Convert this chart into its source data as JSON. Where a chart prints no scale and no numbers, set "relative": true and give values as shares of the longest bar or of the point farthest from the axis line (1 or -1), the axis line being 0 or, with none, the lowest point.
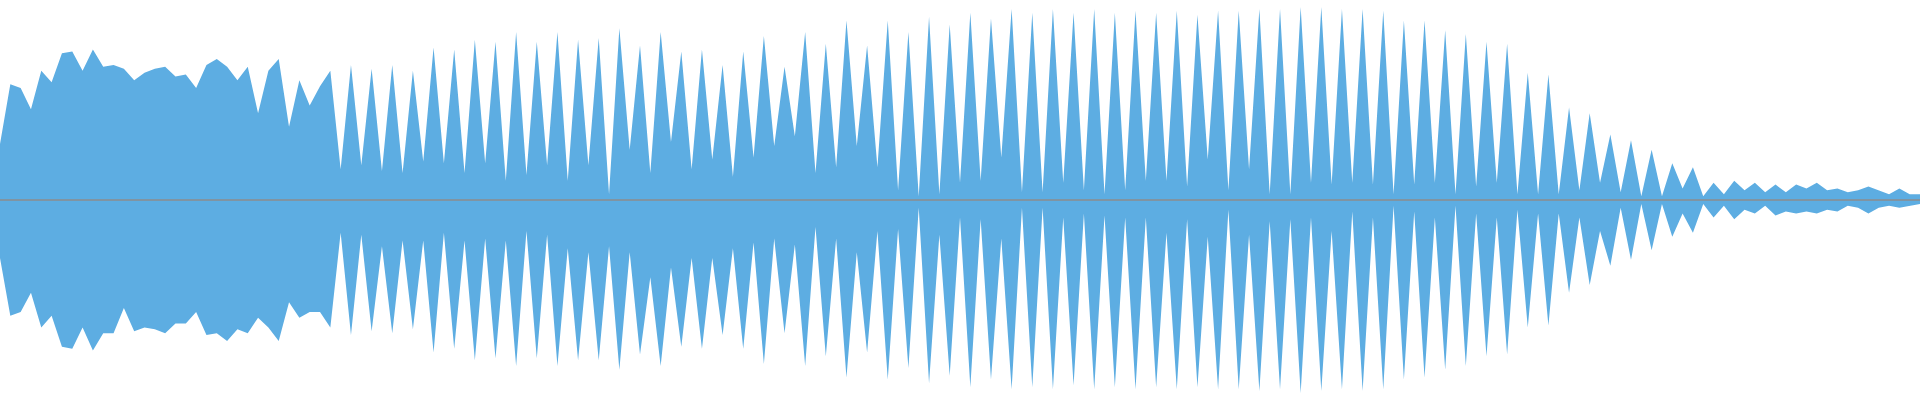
{
  "chart_data": {
    "type": "area",
    "relative": true,
    "categories": [
      null,
      null,
      null,
      null,
      null,
      null,
      null,
      null,
      null,
      null,
      null,
      null,
      null,
      null,
      null,
      null,
      null,
      null,
      null,
      null,
      null,
      null,
      null,
      null,
      null,
      null,
      null,
      null,
      null,
      null,
      null,
      null,
      null,
      null,
      null,
      null,
      null,
      null,
      null,
      null,
      null,
      null,
      null,
      null,
      null,
      null,
      null,
      null,
      null,
      null,
      null,
      null,
      null,
      null,
      null,
      null,
      null,
      null,
      null,
      null,
      null,
      null,
      null,
      null,
      null,
      null,
      null,
      null,
      null,
      null,
      null,
      null,
      null,
      null,
      null,
      null,
      null,
      null,
      null,
      null,
      null,
      null,
      null,
      null,
      null,
      null,
      null,
      null,
      null,
      null,
      null,
      null,
      null,
      null,
      null,
      null,
      null,
      null,
      null,
      null,
      null,
      null,
      null,
      null,
      null,
      null,
      null,
      null,
      null,
      null,
      null,
      null,
      null,
      null,
      null,
      null,
      null,
      null,
      null,
      null,
      null,
      null,
      null,
      null,
      null,
      null,
      null,
      null,
      null,
      null,
      null,
      null,
      null,
      null,
      null,
      null,
      null,
      null,
      null,
      null,
      null,
      null,
      null,
      null,
      null,
      null,
      null,
      null,
      null,
      null,
      null,
      null,
      null,
      null,
      null,
      null,
      null,
      null,
      null,
      null,
      null,
      null,
      null,
      null,
      null,
      null,
      null,
      null,
      null,
      null,
      null,
      null,
      null,
      null,
      null,
      null,
      null,
      null,
      null,
      null,
      null,
      null,
      null,
      null,
      null,
      null,
      null
    ],
    "series": [
      {
        "color": "#5dade2",
        "values": [
          0.29,
          0.6,
          0.58,
          0.47,
          0.67,
          0.61,
          0.76,
          0.77,
          0.67,
          0.78,
          0.69,
          0.7,
          0.68,
          0.62,
          0.66,
          0.68,
          0.69,
          0.64,
          0.65,
          0.58,
          0.7,
          0.73,
          0.69,
          0.62,
          0.69,
          0.45,
          0.67,
          0.73,
          0.38,
          0.62,
          0.49,
          0.59,
          0.67,
          0.16,
          0.7,
          0.18,
          0.68,
          0.15,
          0.7,
          0.14,
          0.67,
          0.2,
          0.79,
          0.19,
          0.78,
          0.14,
          0.83,
          0.19,
          0.82,
          0.1,
          0.87,
          0.13,
          0.82,
          0.18,
          0.87,
          0.1,
          0.83,
          0.18,
          0.84,
          0.03,
          0.89,
          0.26,
          0.8,
          0.14,
          0.87,
          0.3,
          0.77,
          0.16,
          0.78,
          0.21,
          0.7,
          0.12,
          0.77,
          0.22,
          0.85,
          0.28,
          0.69,
          0.33,
          0.87,
          0.14,
          0.81,
          0.17,
          0.93,
          0.28,
          0.8,
          0.17,
          0.93,
          0.05,
          0.87,
          0.02,
          0.95,
          0.03,
          0.91,
          0.09,
          0.97,
          0.1,
          0.94,
          0.22,
          0.99,
          0.04,
          0.97,
          0.04,
          0.99,
          0.09,
          0.97,
          0.05,
          0.99,
          0.03,
          0.97,
          0.05,
          0.98,
          0.1,
          0.97,
          0.1,
          0.98,
          0.07,
          0.96,
          0.21,
          0.98,
          0.05,
          0.98,
          0.16,
          0.99,
          0.03,
          0.99,
          0.03,
          1.0,
          0.09,
          1.0,
          0.08,
          0.99,
          0.09,
          0.99,
          0.08,
          0.98,
          0.03,
          0.93,
          0.08,
          0.93,
          0.09,
          0.88,
          0.03,
          0.86,
          0.07,
          0.82,
          0.09,
          0.81,
          0.03,
          0.66,
          0.03,
          0.65,
          0.03,
          0.48,
          0.05,
          0.45,
          0.09,
          0.34,
          0.04,
          0.31,
          0.02,
          0.26,
          0.02,
          0.19,
          0.06,
          0.17,
          0.02,
          0.09,
          0.03,
          0.1,
          0.05,
          0.09,
          0.04,
          0.08,
          0.04,
          0.08,
          0.06,
          0.09,
          0.05,
          0.06,
          0.04,
          0.05,
          0.07,
          0.05,
          0.03,
          0.06,
          0.03,
          0.03
        ]
      },
      {
        "color": "#5dade2",
        "values": [
          -0.3,
          -0.6,
          -0.58,
          -0.48,
          -0.66,
          -0.6,
          -0.76,
          -0.77,
          -0.66,
          -0.78,
          -0.69,
          -0.69,
          -0.56,
          -0.68,
          -0.66,
          -0.67,
          -0.69,
          -0.64,
          -0.64,
          -0.58,
          -0.7,
          -0.69,
          -0.73,
          -0.67,
          -0.69,
          -0.61,
          -0.66,
          -0.73,
          -0.53,
          -0.61,
          -0.58,
          -0.58,
          -0.66,
          -0.17,
          -0.7,
          -0.18,
          -0.68,
          -0.24,
          -0.69,
          -0.21,
          -0.67,
          -0.21,
          -0.79,
          -0.17,
          -0.77,
          -0.21,
          -0.83,
          -0.2,
          -0.82,
          -0.21,
          -0.86,
          -0.16,
          -0.82,
          -0.18,
          -0.86,
          -0.25,
          -0.83,
          -0.27,
          -0.83,
          -0.24,
          -0.88,
          -0.27,
          -0.8,
          -0.4,
          -0.86,
          -0.35,
          -0.76,
          -0.3,
          -0.77,
          -0.3,
          -0.7,
          -0.25,
          -0.77,
          -0.22,
          -0.85,
          -0.2,
          -0.69,
          -0.23,
          -0.86,
          -0.14,
          -0.81,
          -0.2,
          -0.92,
          -0.27,
          -0.79,
          -0.16,
          -0.93,
          -0.15,
          -0.87,
          -0.04,
          -0.95,
          -0.18,
          -0.91,
          -0.09,
          -0.97,
          -0.1,
          -0.93,
          -0.2,
          -0.98,
          -0.04,
          -0.97,
          -0.04,
          -0.98,
          -0.09,
          -0.96,
          -0.07,
          -0.98,
          -0.08,
          -0.97,
          -0.09,
          -0.98,
          -0.09,
          -0.97,
          -0.17,
          -0.98,
          -0.1,
          -0.97,
          -0.19,
          -0.98,
          -0.05,
          -0.98,
          -0.18,
          -0.99,
          -0.11,
          -0.98,
          -0.1,
          -1.0,
          -0.09,
          -0.99,
          -0.16,
          -0.98,
          -0.06,
          -0.99,
          -0.09,
          -0.98,
          -0.03,
          -0.93,
          -0.06,
          -0.92,
          -0.09,
          -0.88,
          -0.03,
          -0.86,
          -0.07,
          -0.81,
          -0.09,
          -0.8,
          -0.05,
          -0.66,
          -0.07,
          -0.65,
          -0.07,
          -0.48,
          -0.09,
          -0.44,
          -0.16,
          -0.34,
          -0.04,
          -0.31,
          -0.02,
          -0.26,
          -0.02,
          -0.19,
          -0.07,
          -0.17,
          -0.02,
          -0.09,
          -0.03,
          -0.1,
          -0.05,
          -0.07,
          -0.03,
          -0.08,
          -0.06,
          -0.07,
          -0.06,
          -0.07,
          -0.05,
          -0.06,
          -0.03,
          -0.04,
          -0.07,
          -0.04,
          -0.03,
          -0.04,
          -0.03,
          -0.02
        ]
      }
    ]
  }
}
